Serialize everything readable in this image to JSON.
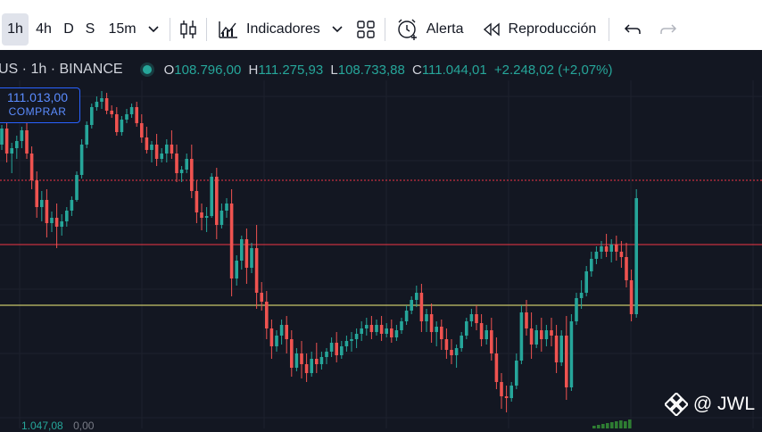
{
  "toolbar": {
    "intervals": [
      "1h",
      "4h",
      "D",
      "S",
      "15m"
    ],
    "indicators_label": "Indicadores",
    "alert_label": "Alerta",
    "replay_label": "Reproducción"
  },
  "symbol": {
    "title": "US · 1h · BINANCE",
    "open_key": "O",
    "open": "108.796,00",
    "high_key": "H",
    "high": "111.275,93",
    "low_key": "L",
    "low": "108.733,88",
    "close_key": "C",
    "close": "111.044,01",
    "change": "+2.248,02 (+2,07%)"
  },
  "buy": {
    "price": "111.013,00",
    "label": "COMPRAR"
  },
  "watermark": "@ JWL",
  "volume_row": {
    "v1": "1.047,08",
    "v2": "0,00"
  },
  "icons": [
    "chevron-down-icon",
    "candles-icon",
    "indicators-icon",
    "layouts-icon",
    "alarm-clock-icon",
    "replay-icon",
    "undo-icon",
    "redo-icon",
    "binance-logo-icon"
  ],
  "colors": {
    "up": "#26a69a",
    "down": "#ef5350",
    "bg": "#131722",
    "accent": "#2962ff",
    "line_yellow": "#f5f07a"
  },
  "chart_data": {
    "type": "candlestick",
    "interval": "1h",
    "candles": [
      [
        -30,
        -8,
        -36,
        -12
      ],
      [
        -12,
        -4,
        -50,
        -40
      ],
      [
        -40,
        -28,
        -62,
        -34
      ],
      [
        -34,
        -20,
        -46,
        -26
      ],
      [
        -26,
        -10,
        -34,
        -14
      ],
      [
        -14,
        -2,
        -46,
        -40
      ],
      [
        -40,
        -32,
        -80,
        -70
      ],
      [
        -70,
        -60,
        -112,
        -100
      ],
      [
        -100,
        -82,
        -116,
        -92
      ],
      [
        -92,
        -80,
        -134,
        -118
      ],
      [
        -118,
        -105,
        -128,
        -112
      ],
      [
        -112,
        -96,
        -146,
        -122
      ],
      [
        -122,
        -108,
        -132,
        -116
      ],
      [
        -116,
        -100,
        -122,
        -104
      ],
      [
        -104,
        -88,
        -110,
        -92
      ],
      [
        -92,
        -60,
        -94,
        -64
      ],
      [
        -64,
        -24,
        -68,
        -30
      ],
      [
        -30,
        -4,
        -34,
        -8
      ],
      [
        -8,
        16,
        -12,
        12
      ],
      [
        12,
        24,
        8,
        18
      ],
      [
        18,
        30,
        10,
        22
      ],
      [
        22,
        28,
        4,
        8
      ],
      [
        8,
        14,
        0,
        4
      ],
      [
        4,
        12,
        -20,
        -16
      ],
      [
        -16,
        2,
        -20,
        -2
      ],
      [
        -2,
        10,
        -6,
        4
      ],
      [
        4,
        16,
        0,
        12
      ],
      [
        12,
        18,
        -10,
        -6
      ],
      [
        -6,
        4,
        -28,
        -22
      ],
      [
        -22,
        -10,
        -40,
        -36
      ],
      [
        -36,
        -26,
        -50,
        -30
      ],
      [
        -30,
        -18,
        -54,
        -46
      ],
      [
        -46,
        -34,
        -50,
        -40
      ],
      [
        -40,
        -24,
        -50,
        -30
      ],
      [
        -30,
        -14,
        -46,
        -40
      ],
      [
        -40,
        -30,
        -72,
        -62
      ],
      [
        -62,
        -54,
        -72,
        -58
      ],
      [
        -58,
        -40,
        -62,
        -46
      ],
      [
        -46,
        -30,
        -90,
        -82
      ],
      [
        -82,
        -70,
        -118,
        -106
      ],
      [
        -106,
        -96,
        -126,
        -112
      ],
      [
        -112,
        -100,
        -128,
        -110
      ],
      [
        -110,
        -62,
        -112,
        -66
      ],
      [
        -66,
        -56,
        -136,
        -120
      ],
      [
        -120,
        -96,
        -124,
        -104
      ],
      [
        -104,
        -90,
        -112,
        -96
      ],
      [
        -96,
        -80,
        -200,
        -180
      ],
      [
        -180,
        -154,
        -188,
        -160
      ],
      [
        -160,
        -132,
        -170,
        -136
      ],
      [
        -136,
        -124,
        -186,
        -168
      ],
      [
        -168,
        -140,
        -174,
        -146
      ],
      [
        -146,
        -120,
        -214,
        -196
      ],
      [
        -196,
        -184,
        -216,
        -206
      ],
      [
        -206,
        -194,
        -248,
        -236
      ],
      [
        -236,
        -226,
        -270,
        -256
      ],
      [
        -256,
        -238,
        -262,
        -244
      ],
      [
        -244,
        -226,
        -254,
        -232
      ],
      [
        -232,
        -222,
        -264,
        -248
      ],
      [
        -248,
        -238,
        -290,
        -280
      ],
      [
        -280,
        -258,
        -284,
        -264
      ],
      [
        -264,
        -250,
        -292,
        -276
      ],
      [
        -276,
        -264,
        -296,
        -286
      ],
      [
        -286,
        -262,
        -290,
        -270
      ],
      [
        -270,
        -252,
        -286,
        -276
      ],
      [
        -276,
        -262,
        -282,
        -268
      ],
      [
        -268,
        -258,
        -276,
        -262
      ],
      [
        -262,
        -246,
        -268,
        -252
      ],
      [
        -252,
        -240,
        -274,
        -266
      ],
      [
        -266,
        -250,
        -270,
        -256
      ],
      [
        -256,
        -244,
        -262,
        -250
      ],
      [
        -250,
        -240,
        -262,
        -248
      ],
      [
        -248,
        -236,
        -258,
        -242
      ],
      [
        -242,
        -228,
        -250,
        -236
      ],
      [
        -236,
        -224,
        -244,
        -232
      ],
      [
        -232,
        -222,
        -248,
        -240
      ],
      [
        -240,
        -226,
        -244,
        -232
      ],
      [
        -232,
        -222,
        -250,
        -242
      ],
      [
        -242,
        -230,
        -246,
        -236
      ],
      [
        -236,
        -226,
        -252,
        -246
      ],
      [
        -246,
        -232,
        -250,
        -238
      ],
      [
        -238,
        -224,
        -242,
        -228
      ],
      [
        -228,
        -210,
        -232,
        -216
      ],
      [
        -216,
        -200,
        -220,
        -204
      ],
      [
        -204,
        -188,
        -212,
        -196
      ],
      [
        -196,
        -186,
        -240,
        -228
      ],
      [
        -228,
        -214,
        -240,
        -220
      ],
      [
        -220,
        -208,
        -252,
        -240
      ],
      [
        -240,
        -228,
        -256,
        -234
      ],
      [
        -234,
        -226,
        -260,
        -248
      ],
      [
        -248,
        -236,
        -270,
        -260
      ],
      [
        -260,
        -248,
        -276,
        -266
      ],
      [
        -266,
        -254,
        -280,
        -258
      ],
      [
        -258,
        -240,
        -262,
        -244
      ],
      [
        -244,
        -224,
        -248,
        -228
      ],
      [
        -228,
        -214,
        -234,
        -220
      ],
      [
        -220,
        -210,
        -238,
        -230
      ],
      [
        -230,
        -220,
        -256,
        -248
      ],
      [
        -248,
        -232,
        -254,
        -238
      ],
      [
        -238,
        -224,
        -272,
        -264
      ],
      [
        -264,
        -246,
        -304,
        -296
      ],
      [
        -296,
        -286,
        -326,
        -312
      ],
      [
        -312,
        -300,
        -330,
        -314
      ],
      [
        -314,
        -296,
        -318,
        -300
      ],
      [
        -300,
        -264,
        -304,
        -272
      ],
      [
        -272,
        -210,
        -276,
        -218
      ],
      [
        -218,
        -204,
        -244,
        -236
      ],
      [
        -236,
        -218,
        -270,
        -254
      ],
      [
        -254,
        -232,
        -258,
        -238
      ],
      [
        -238,
        -224,
        -262,
        -248
      ],
      [
        -248,
        -232,
        -256,
        -238
      ],
      [
        -238,
        -224,
        -256,
        -244
      ],
      [
        -244,
        -232,
        -286,
        -274
      ],
      [
        -274,
        -238,
        -278,
        -244
      ],
      [
        -244,
        -222,
        -316,
        -302
      ],
      [
        -302,
        -220,
        -306,
        -228
      ],
      [
        -228,
        -196,
        -232,
        -202
      ],
      [
        -202,
        -182,
        -214,
        -196
      ],
      [
        -196,
        -166,
        -200,
        -172
      ],
      [
        -172,
        -150,
        -178,
        -158
      ],
      [
        -158,
        -144,
        -164,
        -150
      ],
      [
        -150,
        -138,
        -158,
        -144
      ],
      [
        -144,
        -130,
        -156,
        -150
      ],
      [
        -150,
        -136,
        -162,
        -142
      ],
      [
        -142,
        -132,
        -160,
        -150
      ],
      [
        -150,
        -138,
        -168,
        -156
      ],
      [
        -156,
        -140,
        -190,
        -182
      ],
      [
        -182,
        -170,
        -228,
        -220
      ],
      [
        -220,
        -80,
        -224,
        -90
      ]
    ],
    "levels": [
      -70,
      -142,
      -210
    ],
    "level_colors": [
      "#f23645",
      "#f23645",
      "#f5f07a"
    ]
  }
}
